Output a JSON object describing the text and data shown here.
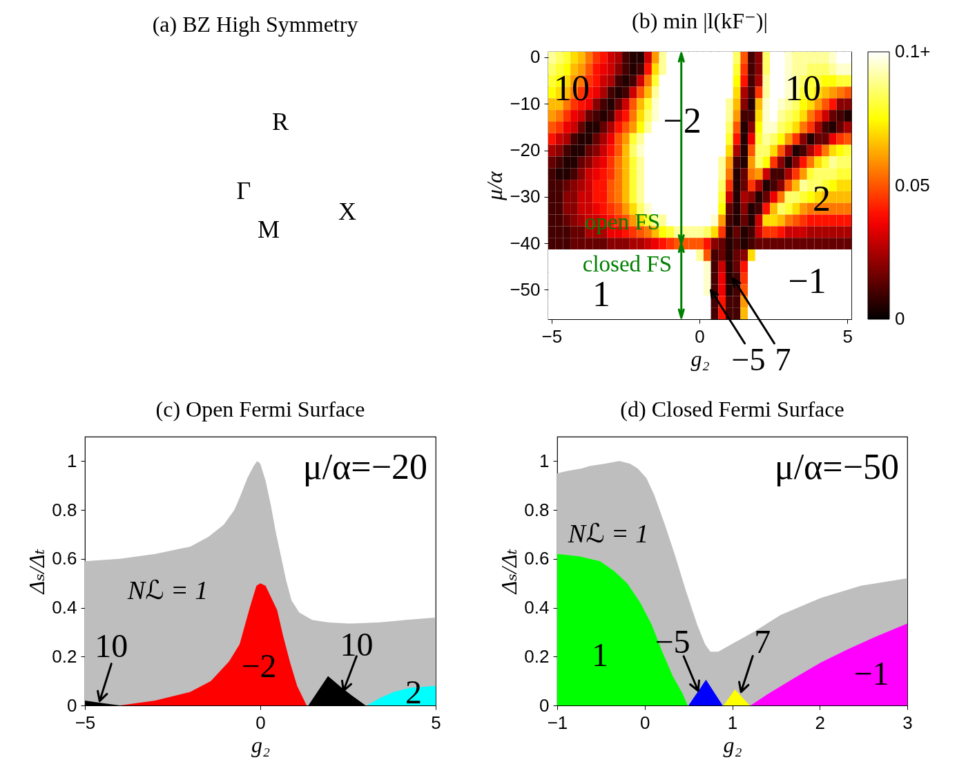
{
  "chart_data": [
    {
      "type": "other",
      "title": "(a) BZ High Symmetry",
      "annotations": [
        "R",
        "Γ",
        "X",
        "M"
      ]
    },
    {
      "type": "heatmap",
      "title": "(b) min |l(kF⁻)|",
      "xlabel": "g₂",
      "ylabel": "μ/α",
      "categories": [
        "−5",
        null,
        null,
        null,
        null,
        null,
        null,
        null,
        null,
        null,
        null,
        null,
        null,
        null,
        null,
        null,
        null,
        null,
        null,
        null,
        "0",
        null,
        null,
        null,
        null,
        null,
        null,
        null,
        null,
        null,
        null,
        null,
        null,
        null,
        null,
        null,
        null,
        null,
        null,
        null,
        "5"
      ],
      "y_categories": [
        "0",
        null,
        null,
        null,
        "−10",
        null,
        null,
        null,
        "−20",
        null,
        null,
        null,
        "−30",
        null,
        null,
        null,
        "−40",
        null,
        null,
        null,
        "−50",
        null,
        null
      ],
      "cells": [
        [
          0.09,
          0.085,
          0.08,
          0.07,
          0.065,
          0.055,
          0.045,
          0.04,
          0.03,
          0.025,
          0.01,
          0.005,
          0.005,
          0.03,
          0.06,
          0.09,
          0.1,
          0.1,
          0.1,
          0.1,
          0.1,
          0.1,
          0.1,
          0.1,
          0.1,
          0.085,
          0.05,
          0.01,
          0.02,
          0.085,
          0.1,
          0.1,
          0.095,
          0.09,
          0.09,
          0.09,
          0.09,
          0.09,
          0.095,
          0.1,
          0.1
        ],
        [
          0.085,
          0.08,
          0.075,
          0.065,
          0.06,
          0.05,
          0.04,
          0.035,
          0.03,
          0.02,
          0.01,
          0.005,
          0.01,
          0.04,
          0.07,
          0.09,
          0.1,
          0.1,
          0.1,
          0.1,
          0.1,
          0.1,
          0.1,
          0.1,
          0.1,
          0.08,
          0.045,
          0.01,
          0.02,
          0.085,
          0.1,
          0.1,
          0.095,
          0.09,
          0.09,
          0.085,
          0.085,
          0.085,
          0.09,
          0.095,
          0.095
        ],
        [
          0.08,
          0.075,
          0.07,
          0.06,
          0.055,
          0.045,
          0.04,
          0.03,
          0.025,
          0.01,
          0.005,
          0.01,
          0.03,
          0.055,
          0.08,
          0.1,
          0.1,
          0.1,
          0.1,
          0.1,
          0.1,
          0.1,
          0.1,
          0.1,
          0.1,
          0.075,
          0.04,
          0.01,
          0.025,
          0.09,
          0.1,
          0.1,
          0.095,
          0.09,
          0.085,
          0.08,
          0.08,
          0.075,
          0.075,
          0.08,
          0.08
        ],
        [
          0.075,
          0.07,
          0.065,
          0.055,
          0.045,
          0.04,
          0.035,
          0.025,
          0.01,
          0.005,
          0.01,
          0.03,
          0.05,
          0.065,
          0.09,
          0.1,
          0.1,
          0.1,
          0.1,
          0.1,
          0.1,
          0.1,
          0.1,
          0.1,
          0.1,
          0.07,
          0.025,
          0.01,
          0.045,
          0.09,
          0.1,
          0.1,
          0.095,
          0.09,
          0.08,
          0.08,
          0.07,
          0.065,
          0.06,
          0.055,
          0.05
        ],
        [
          0.065,
          0.065,
          0.055,
          0.045,
          0.04,
          0.035,
          0.02,
          0.01,
          0.005,
          0.015,
          0.03,
          0.05,
          0.065,
          0.08,
          0.095,
          0.1,
          0.1,
          0.1,
          0.1,
          0.1,
          0.1,
          0.1,
          0.1,
          0.1,
          0.09,
          0.065,
          0.02,
          0.005,
          0.065,
          0.095,
          0.1,
          0.095,
          0.09,
          0.085,
          0.075,
          0.07,
          0.06,
          0.05,
          0.04,
          0.02,
          0.02
        ],
        [
          0.06,
          0.055,
          0.045,
          0.035,
          0.03,
          0.015,
          0.01,
          0.005,
          0.01,
          0.03,
          0.04,
          0.055,
          0.07,
          0.085,
          0.095,
          0.1,
          0.1,
          0.1,
          0.1,
          0.1,
          0.1,
          0.1,
          0.1,
          0.1,
          0.09,
          0.06,
          0.01,
          0.01,
          0.07,
          0.095,
          0.1,
          0.09,
          0.085,
          0.08,
          0.07,
          0.055,
          0.045,
          0.03,
          0.015,
          0.01,
          0.005
        ],
        [
          0.05,
          0.045,
          0.035,
          0.03,
          0.015,
          0.005,
          0.005,
          0.015,
          0.025,
          0.04,
          0.05,
          0.06,
          0.075,
          0.09,
          0.1,
          0.1,
          0.1,
          0.1,
          0.1,
          0.1,
          0.1,
          0.1,
          0.1,
          0.1,
          0.085,
          0.05,
          0.005,
          0.02,
          0.075,
          0.095,
          0.095,
          0.085,
          0.08,
          0.07,
          0.055,
          0.045,
          0.025,
          0.01,
          0.005,
          0.015,
          0.025
        ],
        [
          0.04,
          0.03,
          0.025,
          0.01,
          0.005,
          0.005,
          0.015,
          0.025,
          0.035,
          0.05,
          0.06,
          0.08,
          0.09,
          0.1,
          0.1,
          0.1,
          0.1,
          0.1,
          0.1,
          0.1,
          0.1,
          0.1,
          0.1,
          0.1,
          0.08,
          0.04,
          0.005,
          0.035,
          0.08,
          0.09,
          0.085,
          0.075,
          0.06,
          0.045,
          0.02,
          0.005,
          0.015,
          0.015,
          0.035,
          0.045,
          0.05
        ],
        [
          0.025,
          0.02,
          0.01,
          0.005,
          0.005,
          0.015,
          0.02,
          0.03,
          0.04,
          0.05,
          0.065,
          0.085,
          0.095,
          0.1,
          0.1,
          0.1,
          0.1,
          0.1,
          0.1,
          0.1,
          0.1,
          0.1,
          0.1,
          0.1,
          0.07,
          0.025,
          0.005,
          0.05,
          0.085,
          0.085,
          0.07,
          0.05,
          0.025,
          0.005,
          0.01,
          0.025,
          0.04,
          0.055,
          0.07,
          0.075,
          0.08
        ],
        [
          0.015,
          0.01,
          0.005,
          0.005,
          0.015,
          0.02,
          0.03,
          0.035,
          0.045,
          0.055,
          0.065,
          0.08,
          0.09,
          0.1,
          0.1,
          0.1,
          0.1,
          0.1,
          0.1,
          0.1,
          0.1,
          0.1,
          0.1,
          0.09,
          0.06,
          0.01,
          0.005,
          0.06,
          0.085,
          0.075,
          0.045,
          0.02,
          0.005,
          0.02,
          0.04,
          0.055,
          0.07,
          0.08,
          0.09,
          0.085,
          0.085
        ],
        [
          0.01,
          0.005,
          0.005,
          0.01,
          0.02,
          0.03,
          0.035,
          0.04,
          0.045,
          0.055,
          0.065,
          0.08,
          0.09,
          0.1,
          0.1,
          0.1,
          0.1,
          0.1,
          0.1,
          0.1,
          0.1,
          0.1,
          0.1,
          0.09,
          0.055,
          0.005,
          0.015,
          0.055,
          0.06,
          0.03,
          0.01,
          0.01,
          0.025,
          0.045,
          0.06,
          0.08,
          0.085,
          0.085,
          0.085,
          0.08,
          0.08
        ],
        [
          0.01,
          0.01,
          0.015,
          0.02,
          0.025,
          0.03,
          0.04,
          0.04,
          0.05,
          0.055,
          0.065,
          0.08,
          0.09,
          0.1,
          0.1,
          0.1,
          0.1,
          0.1,
          0.1,
          0.1,
          0.1,
          0.1,
          0.1,
          0.085,
          0.045,
          0.005,
          0.015,
          0.045,
          0.025,
          0.005,
          0.01,
          0.02,
          0.05,
          0.065,
          0.09,
          0.085,
          0.085,
          0.08,
          0.075,
          0.07,
          0.07
        ],
        [
          0.01,
          0.01,
          0.02,
          0.02,
          0.03,
          0.03,
          0.04,
          0.04,
          0.05,
          0.055,
          0.065,
          0.08,
          0.09,
          0.1,
          0.1,
          0.1,
          0.1,
          0.1,
          0.1,
          0.1,
          0.1,
          0.1,
          0.1,
          0.08,
          0.03,
          0.005,
          0.025,
          0.02,
          0.005,
          0.015,
          0.035,
          0.055,
          0.085,
          0.085,
          0.08,
          0.075,
          0.07,
          0.065,
          0.065,
          0.065,
          0.065
        ],
        [
          0.01,
          0.01,
          0.02,
          0.02,
          0.03,
          0.03,
          0.035,
          0.04,
          0.045,
          0.05,
          0.06,
          0.07,
          0.085,
          0.095,
          0.1,
          0.1,
          0.1,
          0.1,
          0.1,
          0.1,
          0.1,
          0.1,
          0.1,
          0.075,
          0.015,
          0.005,
          0.02,
          0.005,
          0.01,
          0.04,
          0.065,
          0.085,
          0.08,
          0.07,
          0.06,
          0.055,
          0.055,
          0.055,
          0.055,
          0.055,
          0.055
        ],
        [
          0.01,
          0.01,
          0.015,
          0.02,
          0.025,
          0.03,
          0.03,
          0.035,
          0.04,
          0.045,
          0.05,
          0.06,
          0.07,
          0.08,
          0.09,
          0.09,
          0.1,
          0.1,
          0.1,
          0.1,
          0.1,
          0.1,
          0.095,
          0.06,
          0.01,
          0.005,
          0.015,
          0.005,
          0.03,
          0.07,
          0.07,
          0.065,
          0.055,
          0.05,
          0.045,
          0.04,
          0.04,
          0.04,
          0.04,
          0.04,
          0.04
        ],
        [
          0.01,
          0.01,
          0.01,
          0.015,
          0.015,
          0.025,
          0.025,
          0.025,
          0.035,
          0.035,
          0.04,
          0.045,
          0.05,
          0.055,
          0.065,
          0.075,
          0.08,
          0.09,
          0.09,
          0.09,
          0.09,
          0.085,
          0.07,
          0.045,
          0.005,
          0.015,
          0.005,
          0.01,
          0.03,
          0.045,
          0.045,
          0.04,
          0.03,
          0.03,
          0.03,
          0.025,
          0.025,
          0.025,
          0.025,
          0.025,
          0.025
        ],
        [
          0.01,
          0.01,
          0.01,
          0.015,
          0.015,
          0.015,
          0.015,
          0.015,
          0.02,
          0.02,
          0.02,
          0.025,
          0.025,
          0.03,
          0.035,
          0.04,
          0.045,
          0.05,
          0.05,
          0.05,
          0.05,
          0.04,
          0.02,
          0.015,
          0.005,
          0.01,
          0.005,
          0.01,
          0.015,
          0.015,
          0.015,
          0.015,
          0.015,
          0.015,
          0.015,
          0.015,
          0.015,
          0.015,
          0.015,
          0.015,
          0.015
        ],
        [
          0.1,
          0.1,
          0.1,
          0.1,
          0.1,
          0.1,
          0.1,
          0.1,
          0.1,
          0.1,
          0.1,
          0.1,
          0.1,
          0.1,
          0.1,
          0.1,
          0.1,
          0.1,
          0.1,
          0.1,
          0.09,
          0.05,
          0.01,
          0.015,
          0.005,
          0.015,
          0.02,
          0.07,
          0.1,
          0.1,
          0.1,
          0.1,
          0.1,
          0.1,
          0.1,
          0.1,
          0.1,
          0.1,
          0.1,
          0.1,
          0.1
        ],
        [
          0.1,
          0.1,
          0.1,
          0.1,
          0.1,
          0.1,
          0.1,
          0.1,
          0.1,
          0.1,
          0.1,
          0.1,
          0.1,
          0.1,
          0.1,
          0.1,
          0.1,
          0.1,
          0.1,
          0.1,
          0.1,
          0.095,
          0.01,
          0.03,
          0.005,
          0.015,
          0.04,
          0.1,
          0.1,
          0.1,
          0.1,
          0.1,
          0.1,
          0.1,
          0.1,
          0.1,
          0.1,
          0.1,
          0.1,
          0.1,
          0.1
        ],
        [
          0.1,
          0.1,
          0.1,
          0.1,
          0.1,
          0.1,
          0.1,
          0.1,
          0.1,
          0.1,
          0.1,
          0.1,
          0.1,
          0.1,
          0.1,
          0.1,
          0.1,
          0.1,
          0.1,
          0.1,
          0.1,
          0.095,
          0.01,
          0.035,
          0.005,
          0.01,
          0.045,
          0.1,
          0.1,
          0.1,
          0.1,
          0.1,
          0.1,
          0.1,
          0.1,
          0.1,
          0.1,
          0.1,
          0.1,
          0.1,
          0.1
        ],
        [
          0.1,
          0.1,
          0.1,
          0.1,
          0.1,
          0.1,
          0.1,
          0.1,
          0.1,
          0.1,
          0.1,
          0.1,
          0.1,
          0.1,
          0.1,
          0.1,
          0.1,
          0.1,
          0.1,
          0.1,
          0.1,
          0.095,
          0.01,
          0.035,
          0.005,
          0.01,
          0.05,
          0.1,
          0.1,
          0.1,
          0.1,
          0.1,
          0.1,
          0.1,
          0.1,
          0.1,
          0.1,
          0.1,
          0.1,
          0.1,
          0.1
        ],
        [
          0.1,
          0.1,
          0.1,
          0.1,
          0.1,
          0.1,
          0.1,
          0.1,
          0.1,
          0.1,
          0.1,
          0.1,
          0.1,
          0.1,
          0.1,
          0.1,
          0.1,
          0.1,
          0.1,
          0.1,
          0.1,
          0.1,
          0.01,
          0.04,
          0.01,
          0.01,
          0.06,
          0.1,
          0.1,
          0.1,
          0.1,
          0.1,
          0.1,
          0.1,
          0.1,
          0.1,
          0.1,
          0.1,
          0.1,
          0.1,
          0.1
        ],
        [
          0.1,
          0.1,
          0.1,
          0.1,
          0.1,
          0.1,
          0.1,
          0.1,
          0.1,
          0.1,
          0.1,
          0.1,
          0.1,
          0.1,
          0.1,
          0.1,
          0.1,
          0.1,
          0.1,
          0.1,
          0.1,
          0.1,
          0.01,
          0.04,
          0.01,
          0.01,
          0.065,
          0.1,
          0.1,
          0.1,
          0.1,
          0.1,
          0.1,
          0.1,
          0.1,
          0.1,
          0.1,
          0.1,
          0.1,
          0.1,
          0.1
        ]
      ],
      "clim": [
        0,
        0.1
      ],
      "cticks": [
        0,
        0.05,
        {
          "value": 0.1,
          "label": "0.1+"
        }
      ],
      "annotations": [
        "10",
        "−2",
        "10",
        "2",
        "1",
        "−1",
        "−5",
        "7",
        "open FS",
        "closed FS"
      ]
    },
    {
      "type": "area",
      "title": "(c) Open Fermi Surface",
      "xlabel": "g₂",
      "ylabel": "Δₛ/Δₜ",
      "xlim": [
        -5,
        5
      ],
      "xticks": [
        -5,
        0,
        5
      ],
      "ylim": [
        0,
        1.1
      ],
      "yticks": [
        0,
        0.2,
        0.4,
        0.6,
        0.8,
        1
      ],
      "series": [
        {
          "color": "#bebebe",
          "x": [
            -5,
            -4,
            -3,
            -2,
            -1.48,
            -1.04,
            -0.74,
            -0.59,
            -0.37,
            -0.19,
            -0.09,
            0,
            0.15,
            0.3,
            0.44,
            0.59,
            0.74,
            0.89,
            1.11,
            1.48,
            1.93,
            2.52,
            3.41,
            4.15,
            5
          ],
          "values": [
            0.59,
            0.6,
            0.62,
            0.65,
            0.69,
            0.74,
            0.8,
            0.85,
            0.93,
            0.98,
            1.0,
            0.99,
            0.92,
            0.82,
            0.71,
            0.61,
            0.51,
            0.43,
            0.38,
            0.35,
            0.34,
            0.335,
            0.34,
            0.35,
            0.36
          ]
        },
        {
          "color": "#000000",
          "x": [
            -5,
            -4.52,
            -4
          ],
          "values": [
            0.02,
            0.01,
            0
          ]
        },
        {
          "color": "#ff0000",
          "x": [
            -4,
            -3,
            -2,
            -1.41,
            -0.89,
            -0.59,
            -0.3,
            -0.11,
            0,
            0.15,
            0.3,
            0.48,
            0.65,
            0.85,
            1.05,
            1.32
          ],
          "values": [
            0,
            0.02,
            0.055,
            0.1,
            0.18,
            0.25,
            0.4,
            0.49,
            0.5,
            0.49,
            0.445,
            0.39,
            0.285,
            0.175,
            0.08,
            0
          ]
        },
        {
          "color": "#000000",
          "x": [
            1.37,
            1.93,
            2.3,
            2.6,
            3.0
          ],
          "values": [
            0,
            0.12,
            0.075,
            0.042,
            0
          ]
        },
        {
          "color": "#00ffff",
          "x": [
            3.04,
            3.4,
            3.8,
            4.3,
            5
          ],
          "values": [
            0,
            0.03,
            0.055,
            0.073,
            0.08
          ]
        }
      ],
      "annotations": [
        "μ/α=−20",
        "Nℒ = 1",
        {
          "text": "10",
          "x": -4.58,
          "y": 0.018
        },
        "−2",
        {
          "text": "10",
          "x": 2.37,
          "y": 0.06
        },
        "2"
      ]
    },
    {
      "type": "area",
      "title": "(d) Closed Fermi Surface",
      "xlabel": "g₂",
      "ylabel": "Δₛ/Δₜ",
      "xlim": [
        -1,
        3
      ],
      "xticks": [
        -1,
        0,
        1,
        2,
        3
      ],
      "ylim": [
        0,
        1.1
      ],
      "yticks": [
        0,
        0.2,
        0.4,
        0.6,
        0.8,
        1
      ],
      "series": [
        {
          "color": "#bebebe",
          "x": [
            -1,
            -0.88,
            -0.72,
            -0.63,
            -0.45,
            -0.29,
            -0.17,
            -0.08,
            0.02,
            0.11,
            0.23,
            0.35,
            0.47,
            0.6,
            0.69,
            0.75,
            0.84,
            0.99,
            1.24,
            1.55,
            2.01,
            2.47,
            3
          ],
          "values": [
            0.95,
            0.96,
            0.97,
            0.98,
            0.99,
            1.0,
            0.99,
            0.97,
            0.93,
            0.86,
            0.74,
            0.61,
            0.47,
            0.33,
            0.25,
            0.22,
            0.22,
            0.25,
            0.3,
            0.37,
            0.44,
            0.49,
            0.52
          ]
        },
        {
          "color": "#00ff00",
          "x": [
            -1,
            -0.75,
            -0.51,
            -0.35,
            -0.2,
            -0.05,
            0.08,
            0.2,
            0.32,
            0.43,
            0.49
          ],
          "values": [
            0.62,
            0.61,
            0.59,
            0.55,
            0.5,
            0.42,
            0.33,
            0.22,
            0.12,
            0.05,
            0
          ]
        },
        {
          "color": "#0000ff",
          "x": [
            0.5,
            0.7,
            0.89
          ],
          "values": [
            0,
            0.105,
            0
          ]
        },
        {
          "color": "#ffff00",
          "x": [
            0.9,
            1.03,
            1.2
          ],
          "values": [
            0,
            0.065,
            0
          ]
        },
        {
          "color": "#ff00ff",
          "x": [
            1.21,
            1.4,
            1.7,
            2.01,
            2.32,
            2.63,
            3
          ],
          "values": [
            0,
            0.045,
            0.11,
            0.175,
            0.23,
            0.28,
            0.335
          ]
        }
      ],
      "annotations": [
        "μ/α=−50",
        "Nℒ = 1",
        "1",
        {
          "text": "−5",
          "x": 0.61,
          "y": 0.06
        },
        {
          "text": "7",
          "x": 1.1,
          "y": 0.055
        },
        "−1"
      ]
    }
  ]
}
